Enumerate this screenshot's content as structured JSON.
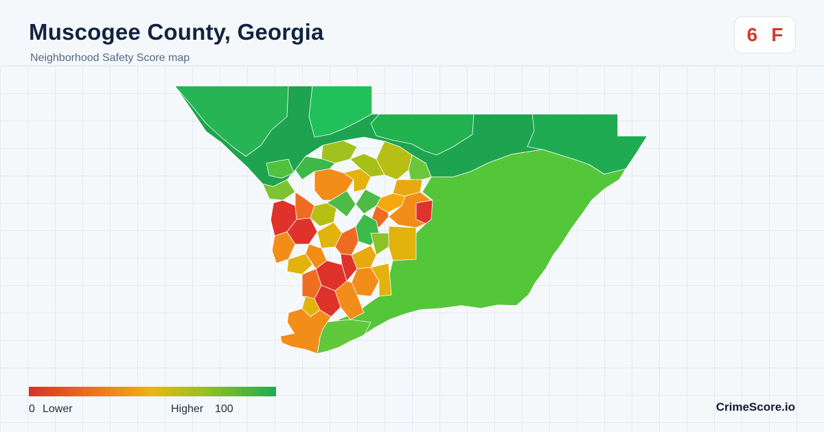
{
  "header": {
    "title": "Muscogee County, Georgia",
    "subtitle": "Neighborhood Safety Score map"
  },
  "grade": {
    "score": "6",
    "letter": "F"
  },
  "legend": {
    "min_value": "0",
    "min_label": "Lower",
    "max_label": "Higher",
    "max_value": "100",
    "scale_colors": [
      "#dc2f2a",
      "#f07d1a",
      "#e8b80a",
      "#93c11e",
      "#1fab52"
    ]
  },
  "brand": {
    "name": "CrimeScore.io"
  },
  "palette": {
    "dark_green": "#1ea350",
    "green": "#21b24f",
    "bright_green": "#22c05a",
    "light_green": "#54c63a",
    "yellow_green": "#9fc21e",
    "olive": "#b7be14",
    "yellow": "#e2b20d",
    "orange": "#f28d19",
    "deep_orange": "#ee6b20",
    "red": "#de322b"
  }
}
